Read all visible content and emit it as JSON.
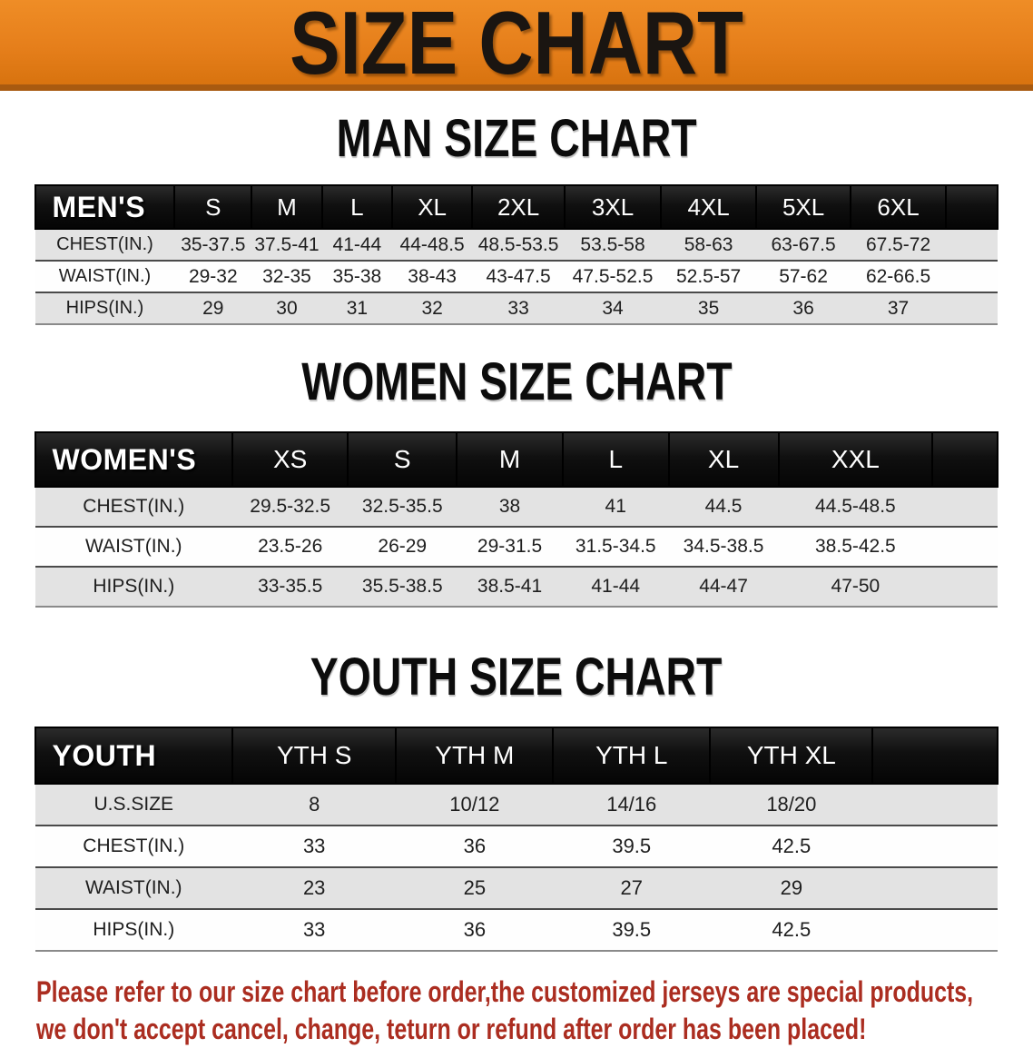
{
  "banner": {
    "title": "SIZE CHART",
    "bg_color": "#e67f1b",
    "edge_color": "#a85a10",
    "text_color": "#1a1511"
  },
  "sections": [
    {
      "heading": "MAN SIZE CHART",
      "header_label": "MEN'S",
      "columns": [
        "S",
        "M",
        "L",
        "XL",
        "2XL",
        "3XL",
        "4XL",
        "5XL",
        "6XL"
      ],
      "rows": [
        {
          "label": "CHEST(IN.)",
          "values": [
            "35-37.5",
            "37.5-41",
            "41-44",
            "44-48.5",
            "48.5-53.5",
            "53.5-58",
            "58-63",
            "63-67.5",
            "67.5-72"
          ]
        },
        {
          "label": "WAIST(IN.)",
          "values": [
            "29-32",
            "32-35",
            "35-38",
            "38-43",
            "43-47.5",
            "47.5-52.5",
            "52.5-57",
            "57-62",
            "62-66.5"
          ]
        },
        {
          "label": "HIPS(IN.)",
          "values": [
            "29",
            "30",
            "31",
            "32",
            "33",
            "34",
            "35",
            "36",
            "37"
          ]
        }
      ]
    },
    {
      "heading": "WOMEN SIZE CHART",
      "header_label": "WOMEN'S",
      "columns": [
        "XS",
        "S",
        "M",
        "L",
        "XL",
        "XXL"
      ],
      "rows": [
        {
          "label": "CHEST(IN.)",
          "values": [
            "29.5-32.5",
            "32.5-35.5",
            "38",
            "41",
            "44.5",
            "44.5-48.5"
          ]
        },
        {
          "label": "WAIST(IN.)",
          "values": [
            "23.5-26",
            "26-29",
            "29-31.5",
            "31.5-34.5",
            "34.5-38.5",
            "38.5-42.5"
          ]
        },
        {
          "label": "HIPS(IN.)",
          "values": [
            "33-35.5",
            "35.5-38.5",
            "38.5-41",
            "41-44",
            "44-47",
            "47-50"
          ]
        }
      ]
    },
    {
      "heading": "YOUTH SIZE CHART",
      "header_label": "YOUTH",
      "columns": [
        "YTH S",
        "YTH M",
        "YTH L",
        "YTH XL"
      ],
      "rows": [
        {
          "label": "U.S.SIZE",
          "values": [
            "8",
            "10/12",
            "14/16",
            "18/20"
          ]
        },
        {
          "label": "CHEST(IN.)",
          "values": [
            "33",
            "36",
            "39.5",
            "42.5"
          ]
        },
        {
          "label": "WAIST(IN.)",
          "values": [
            "23",
            "25",
            "27",
            "29"
          ]
        },
        {
          "label": "HIPS(IN.)",
          "values": [
            "33",
            "36",
            "39.5",
            "42.5"
          ]
        }
      ]
    }
  ],
  "disclaimer": {
    "line1": "Please refer to our size chart before order,the customized jerseys are special products,",
    "line2": "we don't accept cancel, change, teturn or refund after order has been placed!",
    "color": "#ab2d20"
  }
}
